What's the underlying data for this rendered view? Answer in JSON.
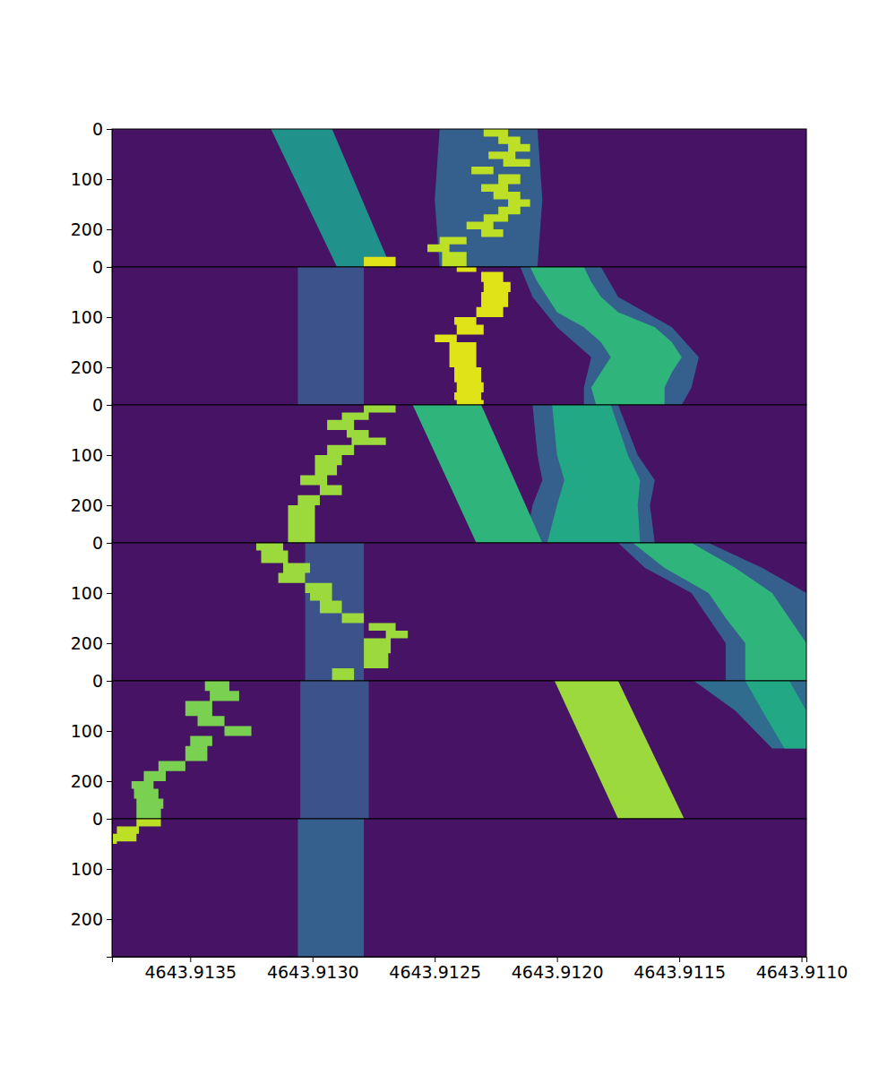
{
  "chart_data": {
    "type": "heatmap",
    "color": "viridis",
    "color_range": [
      0,
      1
    ],
    "xlim": [
      4643.91382,
      4643.91098
    ],
    "xticks": [
      {
        "value": 4643.9135,
        "label": "4643.9135"
      },
      {
        "value": 4643.913,
        "label": "4643.9130"
      },
      {
        "value": 4643.9125,
        "label": "4643.9125"
      },
      {
        "value": 4643.912,
        "label": "4643.9120"
      },
      {
        "value": 4643.9115,
        "label": "4643.9115"
      },
      {
        "value": 4643.911,
        "label": "4643.9110"
      }
    ],
    "panels": [
      {
        "ylim": [
          0,
          275
        ],
        "yticks": [
          0,
          100,
          200
        ],
        "background": 0.05,
        "features": [
          {
            "y": [
              0,
              140,
              275
            ],
            "x0": [
              4643.91248,
              4643.9125,
              4643.91248
            ],
            "x1": [
              4643.91208,
              4643.91206,
              4643.91208
            ],
            "value": 0.3
          },
          {
            "y": [
              0,
              275
            ],
            "x0": [
              4643.91317,
              4643.9129
            ],
            "x1": [
              4643.91292,
              4643.91268
            ],
            "value": 0.5
          },
          {
            "y": [
              255,
              275
            ],
            "x0": [
              4643.91279,
              4643.91279
            ],
            "x1": [
              4643.91266,
              4643.91266
            ],
            "value": 0.95,
            "line_style": "step"
          },
          {
            "y": [
              0,
              15,
              30,
              45,
              60,
              75,
              90,
              110,
              125,
              140,
              155,
              170,
              185,
              200,
              215,
              230,
              245,
              275
            ],
            "x0": [
              4643.9123,
              4643.91224,
              4643.9122,
              4643.91228,
              4643.91222,
              4643.91235,
              4643.91224,
              4643.91231,
              4643.91226,
              4643.9122,
              4643.91224,
              4643.9123,
              4643.91237,
              4643.91231,
              4643.91248,
              4643.91253,
              4643.91247,
              4643.91247
            ],
            "x1": [
              4643.9122,
              4643.91215,
              4643.91211,
              4643.91217,
              4643.91211,
              4643.91226,
              4643.91215,
              4643.9122,
              4643.91215,
              4643.91211,
              4643.91215,
              4643.9122,
              4643.91226,
              4643.91222,
              4643.91237,
              4643.91244,
              4643.91237,
              4643.91237
            ],
            "value": 0.9,
            "line_style": "step"
          }
        ]
      },
      {
        "ylim": [
          0,
          275
        ],
        "yticks": [
          0,
          100,
          200
        ],
        "background": 0.05,
        "features": [
          {
            "y": [
              0,
              275
            ],
            "x0": [
              4643.91306,
              4643.91306
            ],
            "x1": [
              4643.91279,
              4643.91279
            ],
            "value": 0.25
          },
          {
            "y": [
              0,
              60,
              120,
              180,
              240,
              275
            ],
            "x0": [
              4643.91215,
              4643.9121,
              4643.912,
              4643.91186,
              4643.91189,
              4643.91189
            ],
            "x1": [
              4643.91182,
              4643.91175,
              4643.91153,
              4643.91142,
              4643.91145,
              4643.91149
            ],
            "value": 0.3
          },
          {
            "y": [
              0,
              30,
              60,
              90,
              120,
              150,
              180,
              210,
              240,
              275
            ],
            "x0": [
              4643.91211,
              4643.91208,
              4643.91204,
              4643.912,
              4643.91189,
              4643.91182,
              4643.91178,
              4643.91182,
              4643.91186,
              4643.91184
            ],
            "x1": [
              4643.91189,
              4643.91186,
              4643.91182,
              4643.91175,
              4643.9116,
              4643.91153,
              4643.91149,
              4643.91153,
              4643.91156,
              4643.91156
            ],
            "value": 0.65
          },
          {
            "y": [
              0,
              10,
              30,
              50,
              80,
              100,
              115,
              135,
              150,
              175,
              200,
              230,
              250,
              265,
              275
            ],
            "x0": [
              4643.91241,
              4643.91231,
              4643.9123,
              4643.91231,
              4643.91233,
              4643.91242,
              4643.91241,
              4643.9125,
              4643.91244,
              4643.91244,
              4643.91242,
              4643.91241,
              4643.91242,
              4643.91241,
              4643.91241
            ],
            "x1": [
              4643.91233,
              4643.91222,
              4643.91219,
              4643.9122,
              4643.91222,
              4643.91233,
              4643.9123,
              4643.91241,
              4643.91233,
              4643.91233,
              4643.91231,
              4643.9123,
              4643.91231,
              4643.9123,
              4643.9123
            ],
            "value": 0.95,
            "line_style": "step"
          }
        ]
      },
      {
        "ylim": [
          0,
          275
        ],
        "yticks": [
          0,
          100,
          200
        ],
        "background": 0.05,
        "features": [
          {
            "y": [
              0,
              100,
              150,
              200,
              275
            ],
            "x0": [
              4643.9121,
              4643.91208,
              4643.91206,
              4643.9121,
              4643.91213
            ],
            "x1": [
              4643.91175,
              4643.91167,
              4643.9116,
              4643.91162,
              4643.9116
            ],
            "value": 0.3
          },
          {
            "y": [
              0,
              100,
              150,
              200,
              275
            ],
            "x0": [
              4643.91202,
              4643.912,
              4643.91197,
              4643.912,
              4643.91204
            ],
            "x1": [
              4643.91178,
              4643.91171,
              4643.91166,
              4643.91167,
              4643.91166
            ],
            "value": 0.6
          },
          {
            "y": [
              0,
              275
            ],
            "x0": [
              4643.91259,
              4643.91233
            ],
            "x1": [
              4643.91231,
              4643.91206
            ],
            "value": 0.65
          },
          {
            "y": [
              0,
              15,
              30,
              50,
              65,
              80,
              100,
              120,
              140,
              160,
              180,
              200,
              275
            ],
            "x0": [
              4643.91279,
              4643.91288,
              4643.91294,
              4643.91286,
              4643.91284,
              4643.91294,
              4643.91299,
              4643.91299,
              4643.91305,
              4643.91297,
              4643.91306,
              4643.9131,
              4643.9131
            ],
            "x1": [
              4643.91266,
              4643.91277,
              4643.91283,
              4643.91277,
              4643.9127,
              4643.91283,
              4643.91288,
              4643.9129,
              4643.91294,
              4643.91288,
              4643.91297,
              4643.91299,
              4643.91299
            ],
            "value": 0.85,
            "line_style": "step"
          }
        ]
      },
      {
        "ylim": [
          0,
          275
        ],
        "yticks": [
          0,
          100,
          200
        ],
        "background": 0.05,
        "features": [
          {
            "y": [
              0,
              275
            ],
            "x0": [
              4643.91303,
              4643.91303
            ],
            "x1": [
              4643.91279,
              4643.91279
            ],
            "value": 0.25
          },
          {
            "y": [
              0,
              50,
              100,
              150,
              200,
              275
            ],
            "x0": [
              4643.91175,
              4643.91164,
              4643.91145,
              4643.91138,
              4643.91131,
              4643.91131
            ],
            "x1": [
              4643.91138,
              4643.91116,
              4643.91098,
              4643.91098,
              4643.91098,
              4643.91098
            ],
            "value": 0.3
          },
          {
            "y": [
              0,
              50,
              100,
              150,
              200,
              275
            ],
            "x0": [
              4643.91169,
              4643.91156,
              4643.91138,
              4643.91131,
              4643.91123,
              4643.91123
            ],
            "x1": [
              4643.91145,
              4643.91127,
              4643.91112,
              4643.91105,
              4643.91098,
              4643.91098
            ],
            "value": 0.65
          },
          {
            "y": [
              0,
              15,
              40,
              60,
              80,
              100,
              115,
              140,
              160,
              175,
              190,
              220,
              250,
              275
            ],
            "x0": [
              4643.91323,
              4643.91321,
              4643.91312,
              4643.91314,
              4643.91303,
              4643.91301,
              4643.91297,
              4643.91288,
              4643.91277,
              4643.9127,
              4643.91279,
              4643.91279,
              4643.91292,
              4643.91292
            ],
            "x1": [
              4643.91312,
              4643.9131,
              4643.91301,
              4643.91303,
              4643.91292,
              4643.91292,
              4643.91288,
              4643.91279,
              4643.91266,
              4643.91261,
              4643.91268,
              4643.91269,
              4643.91283,
              4643.91283
            ],
            "value": 0.85,
            "line_style": "step"
          }
        ]
      },
      {
        "ylim": [
          0,
          275
        ],
        "yticks": [
          0,
          100,
          200
        ],
        "background": 0.05,
        "features": [
          {
            "y": [
              0,
              275
            ],
            "x0": [
              4643.91305,
              4643.91305
            ],
            "x1": [
              4643.91277,
              4643.91277
            ],
            "value": 0.25
          },
          {
            "y": [
              0,
              60,
              135
            ],
            "x0": [
              4643.91144,
              4643.91127,
              4643.91112
            ],
            "x1": [
              4643.91098,
              4643.91098,
              4643.91098
            ],
            "value": 0.35
          },
          {
            "y": [
              0,
              60,
              135
            ],
            "x0": [
              4643.91123,
              4643.91116,
              4643.91107
            ],
            "x1": [
              4643.91105,
              4643.91098,
              4643.91098
            ],
            "value": 0.6
          },
          {
            "y": [
              0,
              275
            ],
            "x0": [
              4643.91201,
              4643.91175
            ],
            "x1": [
              4643.91175,
              4643.91148
            ],
            "value": 0.85
          },
          {
            "y": [
              0,
              20,
              40,
              70,
              90,
              110,
              130,
              160,
              180,
              200,
              215,
              235,
              255,
              275
            ],
            "x0": [
              4643.91344,
              4643.91342,
              4643.91352,
              4643.91347,
              4643.91336,
              4643.9135,
              4643.91352,
              4643.91363,
              4643.91369,
              4643.91374,
              4643.91373,
              4643.91372,
              4643.91372,
              4643.91372
            ],
            "x1": [
              4643.91334,
              4643.9133,
              4643.91341,
              4643.91336,
              4643.91325,
              4643.91341,
              4643.91343,
              4643.91352,
              4643.9136,
              4643.91365,
              4643.91363,
              4643.91361,
              4643.91362,
              4643.91362
            ],
            "value": 0.8,
            "line_style": "step"
          }
        ]
      },
      {
        "ylim": [
          0,
          275
        ],
        "yticks": [
          0,
          100,
          200
        ],
        "background": 0.05,
        "features": [
          {
            "y": [
              0,
              275
            ],
            "x0": [
              4643.91306,
              4643.91306
            ],
            "x1": [
              4643.91279,
              4643.91279
            ],
            "value": 0.3
          },
          {
            "y": [
              0,
              15,
              30,
              45,
              50
            ],
            "x0": [
              4643.91372,
              4643.9138,
              4643.91382,
              4643.91382,
              4643.91382
            ],
            "x1": [
              4643.91362,
              4643.91371,
              4643.91372,
              4643.9138,
              4643.9138
            ],
            "value": 0.9,
            "line_style": "step"
          }
        ]
      }
    ]
  }
}
